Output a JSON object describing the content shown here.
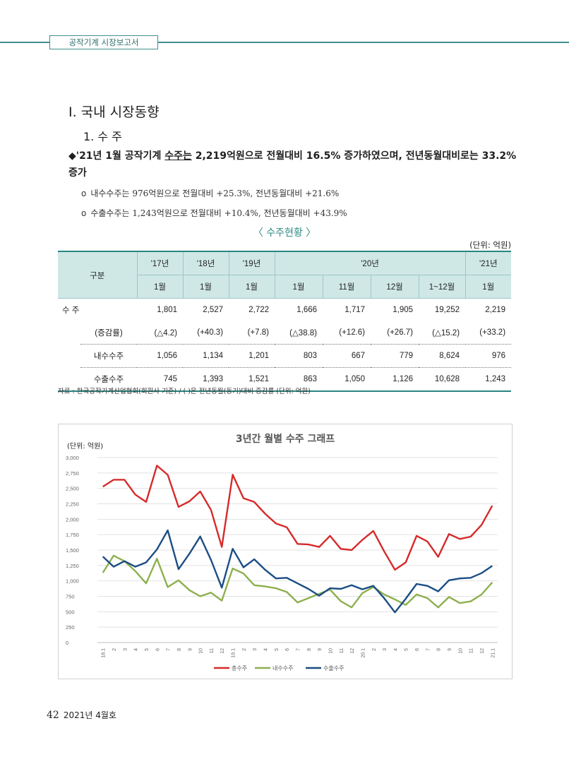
{
  "header": {
    "section": "공작기계 시장보고서"
  },
  "heading1": "Ⅰ. 국내 시장동향",
  "heading2": "1. 수 주",
  "lead": {
    "marker": "◆",
    "t1": "'21년 1월 공작기계 ",
    "t2": "수주는",
    "t3": " 2,219억원으로 전월대비 16.5% 증가하였으며, 전년동월대비로는 33.2% 증가"
  },
  "bullets": [
    {
      "marker": "o",
      "text": "내수수주는 976억원으로 전월대비 +25.3%, 전년동월대비 +21.6%"
    },
    {
      "marker": "o",
      "text": "수출수주는 1,243억원으로 전월대비 +10.4%, 전년동월대비 +43.9%"
    }
  ],
  "table": {
    "caption": "〈 수주현황 〉",
    "unit": "(단위: 억원)",
    "corner": "구분",
    "years": [
      "'17년",
      "'18년",
      "'19년",
      "'20년",
      "'21년"
    ],
    "months": [
      "1월",
      "1월",
      "1월",
      "1월",
      "11월",
      "12월",
      "1~12월",
      "1월"
    ],
    "rows": [
      {
        "label": "수    주",
        "values": [
          "1,801",
          "2,527",
          "2,722",
          "1,666",
          "1,717",
          "1,905",
          "19,252",
          "2,219"
        ]
      },
      {
        "label": "(증감률)",
        "values": [
          "(△4.2)",
          "(+40.3)",
          "(+7.8)",
          "(△38.8)",
          "(+12.6)",
          "(+26.7)",
          "(△15.2)",
          "(+33.2)"
        ]
      },
      {
        "label": "내수수주",
        "values": [
          "1,056",
          "1,134",
          "1,201",
          "803",
          "667",
          "779",
          "8,624",
          "976"
        ]
      },
      {
        "label": "수출수주",
        "values": [
          "745",
          "1,393",
          "1,521",
          "863",
          "1,050",
          "1,126",
          "10,628",
          "1,243"
        ]
      }
    ],
    "source": "자료 : 한국공작기계산업협회(회원사 기준) / (  )은 전년동월(동기)대비 증감률 (단위: 억원)"
  },
  "chart_data": {
    "type": "line",
    "title": "3년간 월별 수주 그래프",
    "ylabel": "(단위: 억원)",
    "ylim": [
      0,
      3000
    ],
    "yticks": [
      "0",
      "250",
      "500",
      "750",
      "1,000",
      "1,250",
      "1,500",
      "1,750",
      "2,000",
      "2,250",
      "2,500",
      "2,750",
      "3,000"
    ],
    "categories": [
      "18.1",
      "2",
      "3",
      "4",
      "5",
      "6",
      "7",
      "8",
      "9",
      "10",
      "11",
      "12",
      "19.1",
      "2",
      "3",
      "4",
      "5",
      "6",
      "7",
      "8",
      "9",
      "10",
      "11",
      "12",
      "20.1",
      "2",
      "3",
      "4",
      "5",
      "6",
      "7",
      "8",
      "9",
      "10",
      "11",
      "12",
      "21.1"
    ],
    "grid": true,
    "legend": "bottom",
    "series": [
      {
        "name": "총수주",
        "color": "#d62a2a",
        "values": [
          2527,
          2640,
          2640,
          2400,
          2280,
          2870,
          2720,
          2200,
          2290,
          2450,
          2150,
          1550,
          2722,
          2340,
          2280,
          2090,
          1930,
          1870,
          1600,
          1590,
          1550,
          1730,
          1520,
          1500,
          1666,
          1810,
          1480,
          1180,
          1300,
          1730,
          1640,
          1390,
          1760,
          1680,
          1717,
          1905,
          2219
        ]
      },
      {
        "name": "내수수주",
        "color": "#8db04e",
        "values": [
          1134,
          1410,
          1320,
          1160,
          960,
          1360,
          900,
          1010,
          850,
          750,
          810,
          680,
          1201,
          1120,
          930,
          910,
          880,
          820,
          650,
          720,
          790,
          860,
          670,
          570,
          803,
          900,
          780,
          700,
          610,
          780,
          720,
          570,
          740,
          640,
          667,
          779,
          976
        ]
      },
      {
        "name": "수출수주",
        "color": "#1b4d85",
        "values": [
          1393,
          1230,
          1320,
          1230,
          1300,
          1510,
          1820,
          1190,
          1440,
          1720,
          1340,
          890,
          1521,
          1220,
          1350,
          1180,
          1040,
          1050,
          960,
          870,
          760,
          880,
          870,
          930,
          863,
          920,
          720,
          490,
          710,
          950,
          920,
          830,
          1010,
          1040,
          1050,
          1126,
          1243
        ]
      }
    ]
  },
  "footer": {
    "page": "42",
    "issue": "2021년 4월호"
  }
}
